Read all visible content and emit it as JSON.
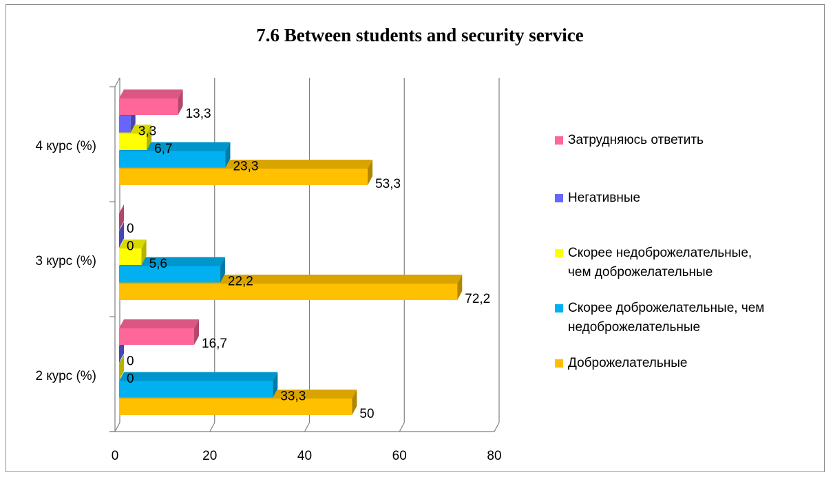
{
  "chart_data": {
    "type": "bar",
    "orientation": "horizontal",
    "title": "7.6 Between students and security service",
    "categories": [
      "2 курс (%)",
      "3 курс (%)",
      "4 курс (%)"
    ],
    "series": [
      {
        "name": "Доброжелательные",
        "color": "#FFC000",
        "values": [
          50,
          72.2,
          53.3
        ],
        "labels": [
          "50",
          "72,2",
          "53,3"
        ]
      },
      {
        "name": "Скорее доброжелательные, чем недоброжелательные",
        "color": "#00B0F0",
        "values": [
          33.3,
          22.2,
          23.3
        ],
        "labels": [
          "33,3",
          "22,2",
          "23,3"
        ]
      },
      {
        "name": "Скорее недоброжелательные, чем доброжелательные",
        "color": "#FFFF00",
        "values": [
          0,
          5.6,
          6.7
        ],
        "labels": [
          "0",
          "5,6",
          "6,7"
        ]
      },
      {
        "name": "Негативные",
        "color": "#6666FF",
        "values": [
          0,
          0,
          3.3
        ],
        "labels": [
          "0",
          "0",
          "3,3"
        ]
      },
      {
        "name": "Затрудняюсь ответить",
        "color": "#FF6699",
        "values": [
          16.7,
          0,
          13.3
        ],
        "labels": [
          "16,7",
          "0",
          "13,3"
        ]
      }
    ],
    "xlim": [
      0,
      80
    ],
    "xticks": [
      "0",
      "20",
      "40",
      "60",
      "80"
    ],
    "grid": true,
    "legend_position": "right",
    "legend_order": [
      4,
      3,
      2,
      1,
      0
    ],
    "legend_lines": [
      [
        "Затрудняюсь ответить"
      ],
      [
        "Негативные"
      ],
      [
        "Скорее недоброжелательные,",
        "чем доброжелательные"
      ],
      [
        "Скорее доброжелательные, чем",
        "недоброжелательные"
      ],
      [
        "Доброжелательные"
      ]
    ]
  }
}
